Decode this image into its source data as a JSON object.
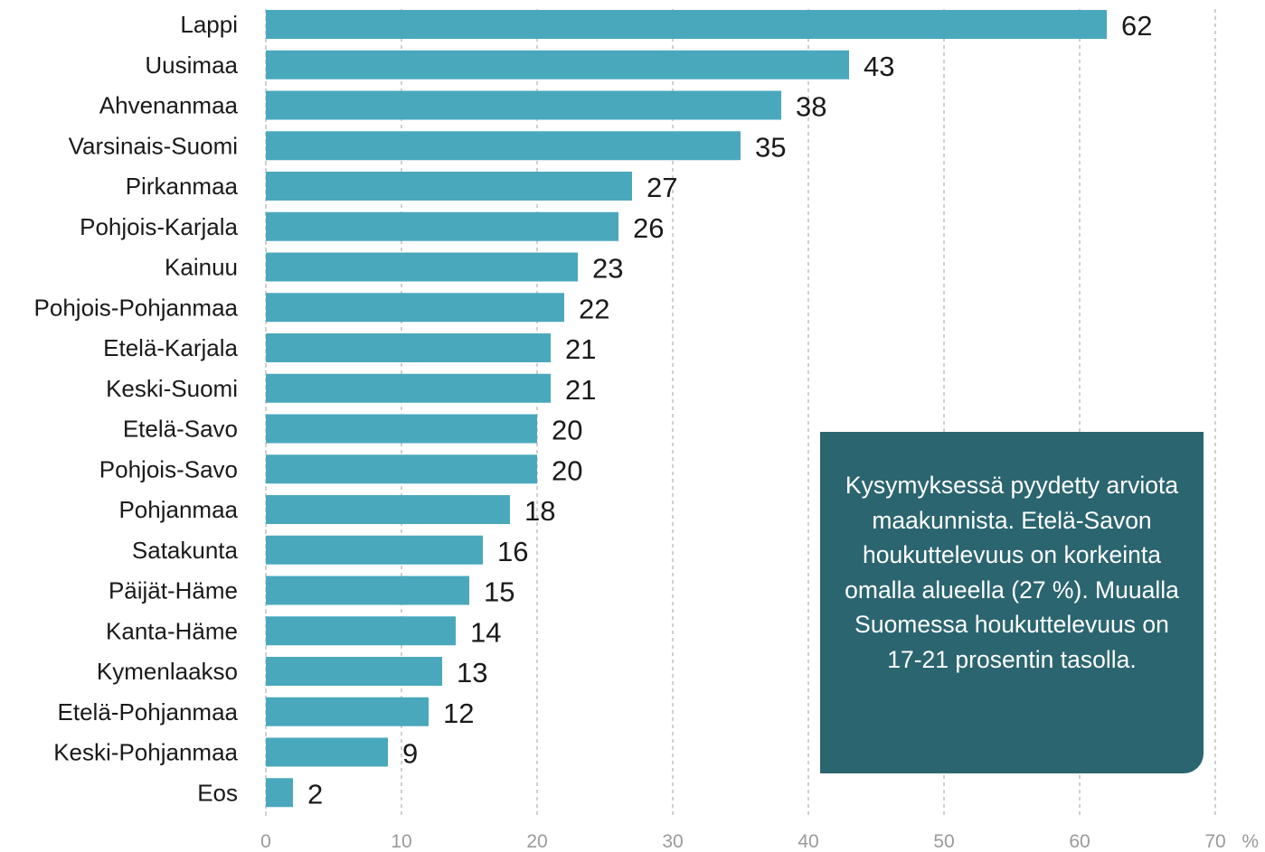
{
  "chart_data": {
    "type": "bar",
    "orientation": "horizontal",
    "categories": [
      "Lappi",
      "Uusimaa",
      "Ahvenanmaa",
      "Varsinais-Suomi",
      "Pirkanmaa",
      "Pohjois-Karjala",
      "Kainuu",
      "Pohjois-Pohjanmaa",
      "Etelä-Karjala",
      "Keski-Suomi",
      "Etelä-Savo",
      "Pohjois-Savo",
      "Pohjanmaa",
      "Satakunta",
      "Päijät-Häme",
      "Kanta-Häme",
      "Kymenlaakso",
      "Etelä-Pohjanmaa",
      "Keski-Pohjanmaa",
      "Eos"
    ],
    "values": [
      62,
      43,
      38,
      35,
      27,
      26,
      23,
      22,
      21,
      21,
      20,
      20,
      18,
      16,
      15,
      14,
      13,
      12,
      9,
      2
    ],
    "xlim": [
      0,
      70
    ],
    "xticks": [
      0,
      10,
      20,
      30,
      40,
      50,
      60,
      70
    ],
    "x_unit": "%",
    "grid": "vertical-dashed",
    "bar_color": "#4aa8bd"
  },
  "annotation": {
    "text": "Kysymyksessä pyydetty arviota maakunnista. Etelä-Savon houkuttelevuus on korkeinta omalla alueella (27 %). Muualla Suomessa houkuttelevuus on 17-21 prosentin tasolla.",
    "background": "#2b6570"
  }
}
